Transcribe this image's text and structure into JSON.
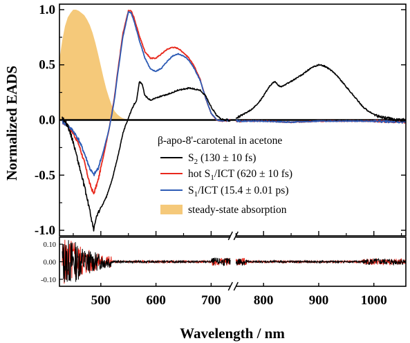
{
  "chart_data": {
    "type": "line",
    "xlabel": "Wavelength / nm",
    "ylabel": "Normalized EADS",
    "xlim": [
      425,
      1058
    ],
    "ylim": [
      -1.05,
      1.05
    ],
    "axis_break": [
      735,
      750
    ],
    "x_ticks": [
      500,
      600,
      700,
      800,
      900,
      1000
    ],
    "y_ticks": [
      1.0,
      0.5,
      0.0,
      -0.5,
      -1.0
    ],
    "y_tick_labels": [
      "1.0",
      "0.5",
      "0.0",
      "-0.5",
      "-1.0"
    ],
    "residual_panel": {
      "ylim": [
        -0.14,
        0.14
      ],
      "y_ticks": [
        0.1,
        0.0,
        -0.1
      ],
      "y_tick_labels": [
        "0.10",
        "0.00",
        "-0.10"
      ]
    },
    "legend": {
      "title": "β-apo-8'-carotenal in acetone",
      "placement": "center-right",
      "entries": [
        {
          "main": "S",
          "sub": "2",
          "rest": " (130 ± 10 fs)"
        },
        {
          "main": "hot S",
          "sub": "1",
          "rest": "/ICT (620 ± 10 fs)"
        },
        {
          "main": "S",
          "sub": "1",
          "rest": "/ICT (15.4 ± 0.01 ps)"
        },
        {
          "main": "steady-state absorption",
          "sub": "",
          "rest": ""
        }
      ]
    },
    "colors": {
      "s2": "#000000",
      "hot": "#e8281c",
      "s1": "#2d5bb5",
      "absorption": "#f5c97a"
    },
    "series": [
      {
        "key": "abs",
        "x": [
          425,
          430,
          435,
          440,
          445,
          450,
          455,
          460,
          465,
          470,
          475,
          480,
          485,
          490,
          495,
          500,
          505,
          510,
          515,
          520,
          525,
          530,
          535,
          540,
          545,
          550,
          555,
          560
        ],
        "y": [
          0.55,
          0.72,
          0.85,
          0.93,
          0.97,
          1.0,
          1.0,
          0.99,
          0.97,
          0.95,
          0.91,
          0.86,
          0.79,
          0.7,
          0.6,
          0.49,
          0.38,
          0.28,
          0.2,
          0.13,
          0.08,
          0.05,
          0.03,
          0.015,
          0.008,
          0.004,
          0.002,
          0.0
        ]
      },
      {
        "key": "hot",
        "x": [
          430,
          440,
          450,
          460,
          470,
          480,
          487,
          495,
          505,
          515,
          520,
          525,
          530,
          540,
          550,
          555,
          560,
          570,
          580,
          590,
          600,
          610,
          620,
          630,
          640,
          650,
          660,
          670,
          680,
          690,
          700,
          710,
          720,
          735,
          750,
          800,
          850,
          900,
          950,
          1000,
          1058
        ],
        "y": [
          -0.02,
          -0.05,
          -0.12,
          -0.22,
          -0.38,
          -0.58,
          -0.67,
          -0.55,
          -0.32,
          -0.08,
          0.06,
          0.22,
          0.42,
          0.78,
          0.99,
          0.99,
          0.93,
          0.76,
          0.62,
          0.56,
          0.56,
          0.6,
          0.64,
          0.66,
          0.65,
          0.61,
          0.56,
          0.48,
          0.37,
          0.2,
          0.06,
          0.0,
          -0.01,
          0.0,
          -0.01,
          -0.01,
          -0.02,
          -0.01,
          -0.01,
          -0.01,
          -0.02
        ]
      },
      {
        "key": "s1",
        "x": [
          430,
          440,
          450,
          460,
          470,
          480,
          487,
          495,
          505,
          515,
          520,
          525,
          530,
          540,
          550,
          555,
          560,
          570,
          580,
          590,
          600,
          610,
          620,
          630,
          640,
          650,
          660,
          670,
          680,
          690,
          700,
          710,
          720,
          735,
          750,
          800,
          850,
          900,
          950,
          1000,
          1058
        ],
        "y": [
          -0.02,
          -0.05,
          -0.1,
          -0.18,
          -0.3,
          -0.44,
          -0.5,
          -0.44,
          -0.28,
          -0.08,
          0.05,
          0.2,
          0.4,
          0.75,
          0.98,
          0.97,
          0.9,
          0.72,
          0.56,
          0.46,
          0.44,
          0.47,
          0.53,
          0.58,
          0.6,
          0.58,
          0.54,
          0.46,
          0.36,
          0.2,
          0.06,
          0.0,
          -0.01,
          0.0,
          -0.01,
          -0.01,
          -0.02,
          -0.01,
          -0.01,
          -0.01,
          -0.02
        ]
      },
      {
        "key": "s2",
        "x": [
          430,
          440,
          450,
          460,
          470,
          480,
          487,
          490,
          495,
          500,
          510,
          520,
          530,
          540,
          550,
          560,
          565,
          570,
          575,
          580,
          590,
          600,
          620,
          640,
          660,
          680,
          690,
          700,
          710,
          720,
          735,
          750,
          760,
          770,
          780,
          790,
          800,
          810,
          820,
          830,
          840,
          850,
          860,
          870,
          880,
          890,
          900,
          910,
          920,
          930,
          940,
          950,
          960,
          970,
          980,
          990,
          1000,
          1010,
          1020,
          1030,
          1040,
          1058
        ],
        "y": [
          0.02,
          -0.05,
          -0.2,
          -0.4,
          -0.6,
          -0.82,
          -1.0,
          -0.92,
          -0.84,
          -0.8,
          -0.7,
          -0.55,
          -0.35,
          -0.12,
          0.02,
          0.14,
          0.18,
          0.35,
          0.32,
          0.22,
          0.18,
          0.2,
          0.23,
          0.27,
          0.29,
          0.27,
          0.22,
          0.12,
          0.04,
          0.0,
          0.0,
          0.02,
          0.04,
          0.07,
          0.1,
          0.15,
          0.22,
          0.3,
          0.35,
          0.3,
          0.32,
          0.35,
          0.38,
          0.41,
          0.45,
          0.48,
          0.5,
          0.49,
          0.46,
          0.42,
          0.36,
          0.3,
          0.24,
          0.18,
          0.12,
          0.08,
          0.05,
          0.03,
          0.02,
          0.01,
          0.0,
          0.0
        ]
      }
    ]
  }
}
